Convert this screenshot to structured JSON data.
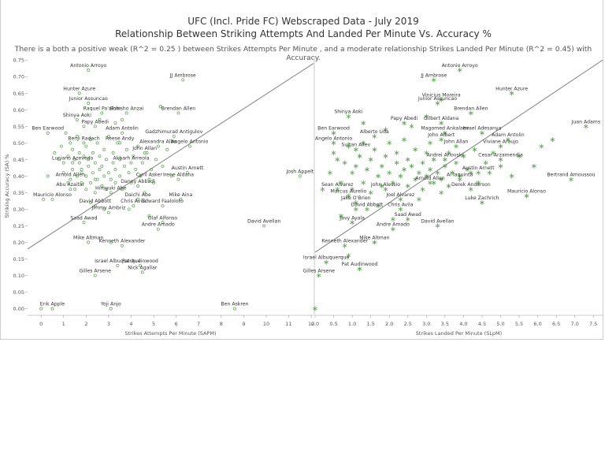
{
  "title": "UFC (Incl. Pride FC) Webscraped Data - July 2019",
  "subtitle": "Relationship Between Striking Attempts And Landed Per Minute Vs. Accuracy %",
  "description": "There is a both a positive weak (R^2 = 0.25 ) between Strikes Attempts Per Minute , and a moderate relationship Strikes Landed Per Minute (R^2 = 0.45) with Accuracy.",
  "colors": {
    "marker": "#59a14f",
    "trend": "#7f7f7f",
    "axis": "#555555",
    "grid": "#d9d9d9"
  },
  "chart_data": [
    {
      "type": "scatter",
      "marker": "circle",
      "xlabel": "Strikes Attempts Per Minute (SAPM)",
      "ylabel": "Striking Accuracy (SA) %",
      "xlim": [
        -0.6,
        12.1
      ],
      "ylim": [
        -0.02,
        0.76
      ],
      "xticks": [
        "0",
        "1",
        "2",
        "3",
        "4",
        "5",
        "6",
        "7",
        "8",
        "9",
        "10",
        "11",
        "12"
      ],
      "yticks": [
        "0.00",
        "0.05",
        "0.10",
        "0.15",
        "0.20",
        "0.25",
        "0.30",
        "0.35",
        "0.40",
        "0.45",
        "0.50",
        "0.55",
        "0.60",
        "0.65",
        "0.70",
        "0.75"
      ],
      "trend": {
        "x1": -0.6,
        "y1": 0.18,
        "x2": 12.1,
        "y2": 0.74
      },
      "labeled_points": [
        {
          "name": "Antonio Arroyo",
          "x": 2.1,
          "y": 0.72
        },
        {
          "name": "JJ Ambrose",
          "x": 6.3,
          "y": 0.69
        },
        {
          "name": "Hunter Azure",
          "x": 1.7,
          "y": 0.65
        },
        {
          "name": "Junior Assuncao",
          "x": 2.1,
          "y": 0.62
        },
        {
          "name": "Raquel Pa'aluhi",
          "x": 2.7,
          "y": 0.59
        },
        {
          "name": "Shinsho Anzai",
          "x": 3.8,
          "y": 0.59
        },
        {
          "name": "Brendan Allen",
          "x": 6.1,
          "y": 0.59
        },
        {
          "name": "Shinya Aoki",
          "x": 1.6,
          "y": 0.57
        },
        {
          "name": "Papy Abedi",
          "x": 2.4,
          "y": 0.55
        },
        {
          "name": "Ben Earwood",
          "x": 0.3,
          "y": 0.53
        },
        {
          "name": "Adam Antolin",
          "x": 3.6,
          "y": 0.53
        },
        {
          "name": "Gadzhimurad Antigulov",
          "x": 5.9,
          "y": 0.52
        },
        {
          "name": "Benji Radach",
          "x": 1.9,
          "y": 0.5
        },
        {
          "name": "Reese Andy",
          "x": 3.5,
          "y": 0.5
        },
        {
          "name": "Alexandra Albu",
          "x": 5.2,
          "y": 0.49
        },
        {
          "name": "Angelo Antonio",
          "x": 6.6,
          "y": 0.49
        },
        {
          "name": "John Allan",
          "x": 4.6,
          "y": 0.47
        },
        {
          "name": "Luciano Azevedo",
          "x": 1.4,
          "y": 0.44
        },
        {
          "name": "Akbarh Arreola",
          "x": 4.0,
          "y": 0.44
        },
        {
          "name": "Austin Arnett",
          "x": 6.5,
          "y": 0.41
        },
        {
          "name": "Arnold Allen",
          "x": 1.3,
          "y": 0.39
        },
        {
          "name": "Cyril Asker",
          "x": 4.8,
          "y": 0.39
        },
        {
          "name": "Irene Aldana",
          "x": 6.1,
          "y": 0.39
        },
        {
          "name": "Josh Appelt",
          "x": 11.5,
          "y": 0.4
        },
        {
          "name": "Danny Abbadi",
          "x": 4.3,
          "y": 0.37
        },
        {
          "name": "Abu Azaitar",
          "x": 1.3,
          "y": 0.36
        },
        {
          "name": "Hiroyuki Abe",
          "x": 3.1,
          "y": 0.35
        },
        {
          "name": "Mauricio Alonso",
          "x": 0.5,
          "y": 0.33
        },
        {
          "name": "Daichi Abe",
          "x": 4.3,
          "y": 0.33
        },
        {
          "name": "Mike Aina",
          "x": 6.2,
          "y": 0.33
        },
        {
          "name": "David Abbott",
          "x": 2.4,
          "y": 0.31
        },
        {
          "name": "Chris Avila",
          "x": 4.1,
          "y": 0.31
        },
        {
          "name": "Edward Faaloloto",
          "x": 5.4,
          "y": 0.31
        },
        {
          "name": "Jimmy Ambriz",
          "x": 3.0,
          "y": 0.29
        },
        {
          "name": "Olaf Alfonso",
          "x": 5.4,
          "y": 0.26
        },
        {
          "name": "Saad Awad",
          "x": 1.9,
          "y": 0.26
        },
        {
          "name": "David Avellan",
          "x": 9.9,
          "y": 0.25
        },
        {
          "name": "Andre Amado",
          "x": 5.2,
          "y": 0.24
        },
        {
          "name": "Mike Altman",
          "x": 2.1,
          "y": 0.2
        },
        {
          "name": "Kenneth Alexander",
          "x": 3.6,
          "y": 0.19
        },
        {
          "name": "Pat Audinwood",
          "x": 4.4,
          "y": 0.13
        },
        {
          "name": "Israel Albuquerque",
          "x": 3.4,
          "y": 0.13
        },
        {
          "name": "Nick Agallar",
          "x": 4.5,
          "y": 0.11
        },
        {
          "name": "Gilles Arsene",
          "x": 2.4,
          "y": 0.1
        },
        {
          "name": "Erik Apple",
          "x": 0.5,
          "y": 0.0
        },
        {
          "name": "Yoji Anjo",
          "x": 3.1,
          "y": 0.0
        },
        {
          "name": "Ben Askren",
          "x": 8.6,
          "y": 0.0
        }
      ],
      "points": [
        [
          0.0,
          0.0
        ],
        [
          0.1,
          0.33
        ],
        [
          0.3,
          0.4
        ],
        [
          0.6,
          0.47
        ],
        [
          0.8,
          0.45
        ],
        [
          0.9,
          0.49
        ],
        [
          1.0,
          0.44
        ],
        [
          1.0,
          0.41
        ],
        [
          1.1,
          0.53
        ],
        [
          1.2,
          0.46
        ],
        [
          1.2,
          0.38
        ],
        [
          1.3,
          0.5
        ],
        [
          1.4,
          0.42
        ],
        [
          1.4,
          0.48
        ],
        [
          1.5,
          0.45
        ],
        [
          1.5,
          0.36
        ],
        [
          1.6,
          0.52
        ],
        [
          1.6,
          0.4
        ],
        [
          1.7,
          0.44
        ],
        [
          1.7,
          0.47
        ],
        [
          1.8,
          0.38
        ],
        [
          1.8,
          0.42
        ],
        [
          1.9,
          0.55
        ],
        [
          1.9,
          0.46
        ],
        [
          2.0,
          0.36
        ],
        [
          2.0,
          0.4
        ],
        [
          2.0,
          0.49
        ],
        [
          2.1,
          0.43
        ],
        [
          2.1,
          0.45
        ],
        [
          2.2,
          0.38
        ],
        [
          2.2,
          0.51
        ],
        [
          2.3,
          0.41
        ],
        [
          2.3,
          0.47
        ],
        [
          2.4,
          0.35
        ],
        [
          2.4,
          0.44
        ],
        [
          2.5,
          0.39
        ],
        [
          2.5,
          0.5
        ],
        [
          2.6,
          0.42
        ],
        [
          2.6,
          0.46
        ],
        [
          2.7,
          0.37
        ],
        [
          2.7,
          0.43
        ],
        [
          2.8,
          0.48
        ],
        [
          2.8,
          0.4
        ],
        [
          2.9,
          0.45
        ],
        [
          2.9,
          0.36
        ],
        [
          3.0,
          0.41
        ],
        [
          3.0,
          0.52
        ],
        [
          3.1,
          0.39
        ],
        [
          3.2,
          0.44
        ],
        [
          3.2,
          0.47
        ],
        [
          3.3,
          0.38
        ],
        [
          3.3,
          0.42
        ],
        [
          3.4,
          0.5
        ],
        [
          3.5,
          0.4
        ],
        [
          3.5,
          0.45
        ],
        [
          3.6,
          0.36
        ],
        [
          3.7,
          0.43
        ],
        [
          3.8,
          0.48
        ],
        [
          3.9,
          0.41
        ],
        [
          4.0,
          0.38
        ],
        [
          4.1,
          0.46
        ],
        [
          4.2,
          0.42
        ],
        [
          4.3,
          0.49
        ],
        [
          4.4,
          0.4
        ],
        [
          4.5,
          0.44
        ],
        [
          4.6,
          0.35
        ],
        [
          4.7,
          0.47
        ],
        [
          4.9,
          0.42
        ],
        [
          5.0,
          0.38
        ],
        [
          5.1,
          0.45
        ],
        [
          5.3,
          0.61
        ],
        [
          5.4,
          0.43
        ],
        [
          5.6,
          0.48
        ],
        [
          5.8,
          0.4
        ],
        [
          3.3,
          0.56
        ],
        [
          3.6,
          0.57
        ],
        [
          2.6,
          0.57
        ],
        [
          3.9,
          0.3
        ],
        [
          2.2,
          0.32
        ],
        [
          2.8,
          0.3
        ],
        [
          4.8,
          0.28
        ],
        [
          3.1,
          0.2
        ],
        [
          1.8,
          0.41
        ],
        [
          2.4,
          0.39
        ]
      ]
    },
    {
      "type": "scatter",
      "marker": "asterisk",
      "xlabel": "Strikes Landed Per Minute (SLpM)",
      "ylabel": "",
      "xlim": [
        0.0,
        7.75
      ],
      "ylim": [
        -0.02,
        0.76
      ],
      "xticks": [
        "0.0",
        "0.5",
        "1.0",
        "1.5",
        "2.0",
        "2.5",
        "3.0",
        "3.5",
        "4.0",
        "4.5",
        "5.0",
        "5.5",
        "6.0",
        "6.5",
        "7.0",
        "7.5"
      ],
      "trend": {
        "x1": 0.0,
        "y1": 0.17,
        "x2": 7.75,
        "y2": 0.75
      },
      "labeled_points": [
        {
          "name": "Antonio Arroyo",
          "x": 3.9,
          "y": 0.72
        },
        {
          "name": "JJ Ambrose",
          "x": 3.2,
          "y": 0.69
        },
        {
          "name": "Hunter Azure",
          "x": 5.3,
          "y": 0.65
        },
        {
          "name": "Vinicius Moreira",
          "x": 3.4,
          "y": 0.63
        },
        {
          "name": "Junior Assuncao",
          "x": 3.3,
          "y": 0.62
        },
        {
          "name": "Brendan Allen",
          "x": 4.2,
          "y": 0.59
        },
        {
          "name": "Shinya Aoki",
          "x": 0.9,
          "y": 0.58
        },
        {
          "name": "Papy Abedi",
          "x": 2.4,
          "y": 0.56
        },
        {
          "name": "Gilbert Aldana",
          "x": 3.4,
          "y": 0.56
        },
        {
          "name": "Ben Earwood",
          "x": 0.5,
          "y": 0.53
        },
        {
          "name": "Alberto Uda",
          "x": 1.6,
          "y": 0.52
        },
        {
          "name": "Magomed Ankalaev",
          "x": 3.5,
          "y": 0.53
        },
        {
          "name": "Israel Adesanya",
          "x": 4.5,
          "y": 0.53
        },
        {
          "name": "Juan Adams",
          "x": 7.3,
          "y": 0.55
        },
        {
          "name": "John Albert",
          "x": 3.4,
          "y": 0.51
        },
        {
          "name": "Angelo Antonio",
          "x": 0.5,
          "y": 0.5
        },
        {
          "name": "Adam Antolin",
          "x": 5.2,
          "y": 0.51
        },
        {
          "name": "John Allan",
          "x": 3.8,
          "y": 0.49
        },
        {
          "name": "Viviane Araujo",
          "x": 5.0,
          "y": 0.49
        },
        {
          "name": "Sultan Aliev",
          "x": 1.1,
          "y": 0.48
        },
        {
          "name": "Andrei Arlovski",
          "x": 3.5,
          "y": 0.45
        },
        {
          "name": "Cesar Arzamendia",
          "x": 5.0,
          "y": 0.45
        },
        {
          "name": "Austin Arnett",
          "x": 4.4,
          "y": 0.41
        },
        {
          "name": "Al Iaquinta",
          "x": 3.9,
          "y": 0.39
        },
        {
          "name": "Bertrand Amoussou",
          "x": 6.9,
          "y": 0.39
        },
        {
          "name": "Arnold Allen",
          "x": 3.1,
          "y": 0.38
        },
        {
          "name": "Sean Alvarez",
          "x": 0.6,
          "y": 0.36
        },
        {
          "name": "John Alessio",
          "x": 1.9,
          "y": 0.36
        },
        {
          "name": "Derek Anderson",
          "x": 4.2,
          "y": 0.36
        },
        {
          "name": "Marcus Aurelio",
          "x": 0.9,
          "y": 0.34
        },
        {
          "name": "Joel Alvarez",
          "x": 2.3,
          "y": 0.33
        },
        {
          "name": "Mauricio Alonso",
          "x": 5.7,
          "y": 0.34
        },
        {
          "name": "Jake O'Brien",
          "x": 1.1,
          "y": 0.32
        },
        {
          "name": "Luke Zachrich",
          "x": 4.5,
          "y": 0.32
        },
        {
          "name": "David Abbott",
          "x": 1.4,
          "y": 0.3
        },
        {
          "name": "Chris Avila",
          "x": 2.3,
          "y": 0.3
        },
        {
          "name": "Saad Awad",
          "x": 2.5,
          "y": 0.27
        },
        {
          "name": "Javy Ayala",
          "x": 1.0,
          "y": 0.26
        },
        {
          "name": "David Avellan",
          "x": 3.3,
          "y": 0.25
        },
        {
          "name": "Andre Amado",
          "x": 2.1,
          "y": 0.24
        },
        {
          "name": "Mike Altman",
          "x": 1.6,
          "y": 0.2
        },
        {
          "name": "Kenneth Alexander",
          "x": 0.8,
          "y": 0.19
        },
        {
          "name": "Israel Albuquerque",
          "x": 0.3,
          "y": 0.14
        },
        {
          "name": "Pat Audinwood",
          "x": 1.2,
          "y": 0.12
        },
        {
          "name": "Gilles Arsene",
          "x": 0.1,
          "y": 0.1
        }
      ],
      "points": [
        [
          0.0,
          0.0
        ],
        [
          0.2,
          0.36
        ],
        [
          0.4,
          0.41
        ],
        [
          0.5,
          0.47
        ],
        [
          0.6,
          0.45
        ],
        [
          0.7,
          0.38
        ],
        [
          0.8,
          0.44
        ],
        [
          0.9,
          0.49
        ],
        [
          1.0,
          0.41
        ],
        [
          1.0,
          0.36
        ],
        [
          1.1,
          0.43
        ],
        [
          1.2,
          0.46
        ],
        [
          1.3,
          0.38
        ],
        [
          1.3,
          0.5
        ],
        [
          1.4,
          0.42
        ],
        [
          1.5,
          0.45
        ],
        [
          1.5,
          0.35
        ],
        [
          1.6,
          0.48
        ],
        [
          1.7,
          0.4
        ],
        [
          1.8,
          0.43
        ],
        [
          1.8,
          0.37
        ],
        [
          1.9,
          0.46
        ],
        [
          2.0,
          0.41
        ],
        [
          2.0,
          0.5
        ],
        [
          2.1,
          0.38
        ],
        [
          2.2,
          0.44
        ],
        [
          2.2,
          0.47
        ],
        [
          2.3,
          0.4
        ],
        [
          2.4,
          0.42
        ],
        [
          2.4,
          0.51
        ],
        [
          2.5,
          0.37
        ],
        [
          2.5,
          0.45
        ],
        [
          2.6,
          0.43
        ],
        [
          2.7,
          0.39
        ],
        [
          2.7,
          0.48
        ],
        [
          2.8,
          0.41
        ],
        [
          2.9,
          0.44
        ],
        [
          2.9,
          0.36
        ],
        [
          3.0,
          0.4
        ],
        [
          3.0,
          0.47
        ],
        [
          3.1,
          0.42
        ],
        [
          3.1,
          0.5
        ],
        [
          3.2,
          0.38
        ],
        [
          3.2,
          0.45
        ],
        [
          3.3,
          0.41
        ],
        [
          3.4,
          0.39
        ],
        [
          3.5,
          0.43
        ],
        [
          3.6,
          0.47
        ],
        [
          3.7,
          0.41
        ],
        [
          3.8,
          0.44
        ],
        [
          3.9,
          0.4
        ],
        [
          4.0,
          0.46
        ],
        [
          4.1,
          0.42
        ],
        [
          4.3,
          0.48
        ],
        [
          4.4,
          0.38
        ],
        [
          4.6,
          0.44
        ],
        [
          4.7,
          0.41
        ],
        [
          4.8,
          0.47
        ],
        [
          5.0,
          0.43
        ],
        [
          5.3,
          0.4
        ],
        [
          5.5,
          0.46
        ],
        [
          5.9,
          0.43
        ],
        [
          6.1,
          0.49
        ],
        [
          6.4,
          0.51
        ],
        [
          2.6,
          0.55
        ],
        [
          3.0,
          0.58
        ],
        [
          1.9,
          0.54
        ],
        [
          1.3,
          0.56
        ],
        [
          0.7,
          0.28
        ],
        [
          1.1,
          0.3
        ],
        [
          2.8,
          0.33
        ],
        [
          3.4,
          0.35
        ],
        [
          1.7,
          0.31
        ],
        [
          2.1,
          0.27
        ],
        [
          0.9,
          0.16
        ],
        [
          3.6,
          0.37
        ],
        [
          4.2,
          0.41
        ]
      ]
    }
  ]
}
